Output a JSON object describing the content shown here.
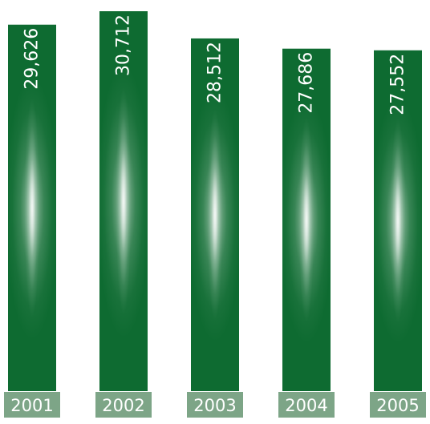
{
  "chart_data": {
    "type": "bar",
    "title": "",
    "xlabel": "",
    "ylabel": "",
    "categories": [
      "2001",
      "2002",
      "2003",
      "2004",
      "2005"
    ],
    "values": [
      29626,
      30712,
      28512,
      27686,
      27552
    ],
    "value_labels": [
      "29,626",
      "30,712",
      "28,512",
      "27,686",
      "27,552"
    ],
    "colors": {
      "bar": "#0e6b31",
      "glow": "#ffffff",
      "category_box": "#7da587",
      "category_text": "#ffffff",
      "value_text": "#ffffff"
    }
  }
}
